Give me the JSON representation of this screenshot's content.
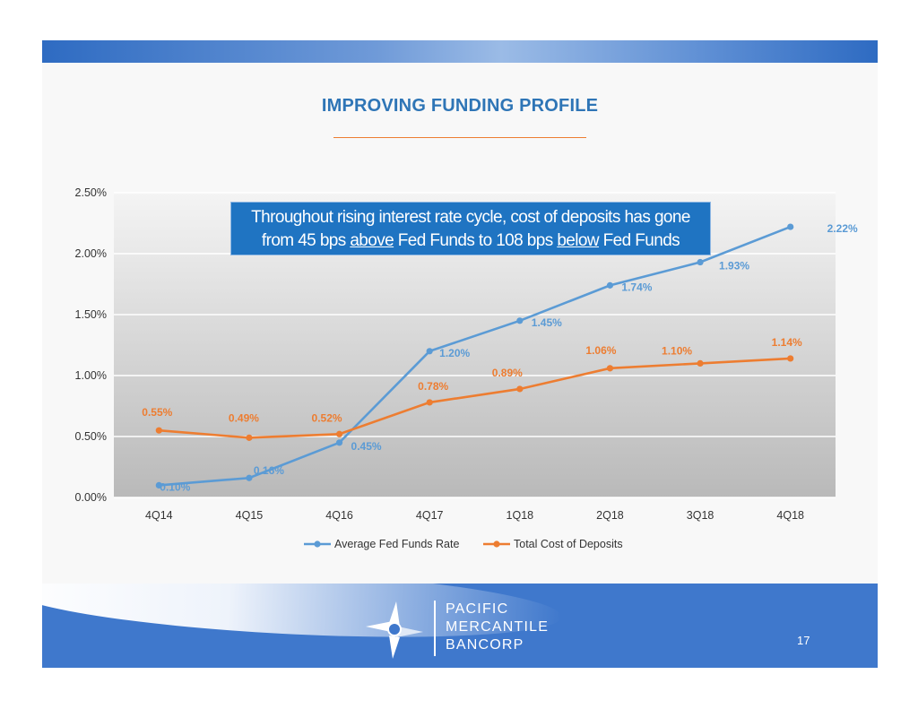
{
  "title": "IMPROVING FUNDING PROFILE",
  "callout": {
    "line1": "Throughout rising interest rate cycle, cost of deposits has gone",
    "line2_a": "from 45 bps ",
    "line2_b": "above",
    "line2_c": " Fed Funds to 108 bps ",
    "line2_d": "below",
    "line2_e": " Fed Funds"
  },
  "brand": {
    "line1": "PACIFIC",
    "line2": "MERCANTILE",
    "line3": "BANCORP"
  },
  "page_number": "17",
  "colors": {
    "blue_series": "#5b9bd5",
    "orange_series": "#ed7d31",
    "title": "#2e75b6",
    "footer": "#3f78cc"
  },
  "chart_data": {
    "type": "line",
    "categories": [
      "4Q14",
      "4Q15",
      "4Q16",
      "4Q17",
      "1Q18",
      "2Q18",
      "3Q18",
      "4Q18"
    ],
    "y_ticks": [
      "0.00%",
      "0.50%",
      "1.00%",
      "1.50%",
      "2.00%",
      "2.50%"
    ],
    "ylim": [
      0,
      2.5
    ],
    "grid": true,
    "legend_position": "bottom",
    "series": [
      {
        "name": "Average Fed Funds Rate",
        "color": "#5b9bd5",
        "values": [
          0.1,
          0.16,
          0.45,
          1.2,
          1.45,
          1.74,
          1.93,
          2.22
        ],
        "labels": [
          "0.10%",
          "0.16%",
          "0.45%",
          "1.20%",
          "1.45%",
          "1.74%",
          "1.93%",
          "2.22%"
        ]
      },
      {
        "name": "Total Cost of Deposits",
        "color": "#ed7d31",
        "values": [
          0.55,
          0.49,
          0.52,
          0.78,
          0.89,
          1.06,
          1.1,
          1.14
        ],
        "labels": [
          "0.55%",
          "0.49%",
          "0.52%",
          "0.78%",
          "0.89%",
          "1.06%",
          "1.10%",
          "1.14%"
        ]
      }
    ]
  }
}
